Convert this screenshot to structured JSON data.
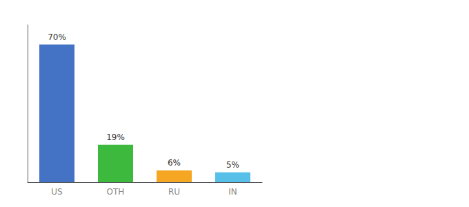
{
  "chart_data": {
    "type": "bar",
    "categories": [
      "US",
      "OTH",
      "RU",
      "IN"
    ],
    "values": [
      70,
      19,
      6,
      5
    ],
    "value_labels": [
      "70%",
      "19%",
      "6%",
      "5%"
    ],
    "colors": [
      "#4472c4",
      "#3dba3d",
      "#f5a623",
      "#56c0e8"
    ],
    "ylim": [
      0,
      80
    ],
    "grid": false,
    "data_labels": true,
    "tick_labels": "x"
  }
}
